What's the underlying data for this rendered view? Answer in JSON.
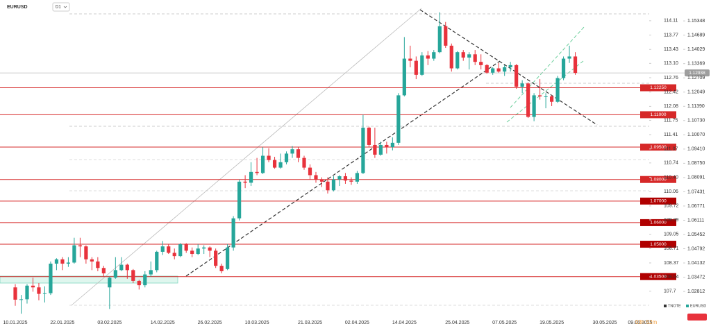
{
  "chart_data": {
    "type": "candlestick",
    "title": "EURUSD",
    "timeframe": "D1",
    "countdown": "03h 52m",
    "categories": [
      "10.01.2025",
      null,
      null,
      null,
      null,
      null,
      null,
      null,
      "22.01.2025",
      null,
      null,
      null,
      null,
      null,
      null,
      null,
      "03.02.2025",
      null,
      null,
      null,
      null,
      null,
      null,
      null,
      null,
      "14.02.2025",
      null,
      null,
      null,
      null,
      null,
      null,
      null,
      "26.02.2025",
      null,
      null,
      null,
      null,
      null,
      null,
      null,
      "10.03.2025",
      null,
      null,
      null,
      null,
      null,
      null,
      null,
      null,
      "21.03.2025",
      null,
      null,
      null,
      null,
      null,
      null,
      null,
      "02.04.2025",
      null,
      null,
      null,
      null,
      null,
      null,
      null,
      "14.04.2025",
      null,
      null,
      null,
      null,
      null,
      null,
      null,
      null,
      "25.04.2025",
      null,
      null,
      null,
      null,
      null,
      null,
      null,
      "07.05.2025",
      null,
      null,
      null,
      null,
      null,
      null,
      null,
      "19.05.2025",
      null,
      null,
      null,
      null,
      null,
      null,
      null,
      null,
      "30.05.2025",
      null,
      null,
      null,
      null,
      null,
      "09.06.2025"
    ],
    "series": [
      {
        "name": "EURUSD",
        "up_color": "#26a69a",
        "down_color": "#e8323c",
        "values": [
          [
            1.03,
            1.0315,
            1.0215,
            1.0243
          ],
          [
            1.0243,
            1.0265,
            1.0178,
            1.0245
          ],
          [
            1.0245,
            1.0315,
            1.0225,
            1.0308
          ],
          [
            1.0308,
            1.0345,
            1.028,
            1.03
          ],
          [
            1.03,
            1.032,
            1.024,
            1.027
          ],
          [
            1.027,
            1.0305,
            1.023,
            1.0273
          ],
          [
            1.0273,
            1.042,
            1.0265,
            1.041
          ],
          [
            1.041,
            1.0435,
            1.038,
            1.043
          ],
          [
            1.043,
            1.044,
            1.038,
            1.041
          ],
          [
            1.041,
            1.044,
            1.0395,
            1.0415
          ],
          [
            1.0415,
            1.053,
            1.041,
            1.0495
          ],
          [
            1.0495,
            1.053,
            1.044,
            1.049
          ],
          [
            1.049,
            1.0495,
            1.041,
            1.043
          ],
          [
            1.043,
            1.044,
            1.038,
            1.042
          ],
          [
            1.042,
            1.044,
            1.0375,
            1.039
          ],
          [
            1.039,
            1.04,
            1.035,
            1.0365
          ],
          [
            1.03,
            1.035,
            1.02,
            1.0345
          ],
          [
            1.0345,
            1.044,
            1.034,
            1.038
          ],
          [
            1.038,
            1.044,
            1.0375,
            1.0405
          ],
          [
            1.0405,
            1.041,
            1.034,
            1.038
          ],
          [
            1.038,
            1.0385,
            1.032,
            1.033
          ],
          [
            1.033,
            1.0335,
            1.029,
            1.031
          ],
          [
            1.031,
            1.0375,
            1.03,
            1.036
          ],
          [
            1.036,
            1.042,
            1.035,
            1.038
          ],
          [
            1.038,
            1.047,
            1.037,
            1.0465
          ],
          [
            1.0465,
            1.0515,
            1.045,
            1.049
          ],
          [
            1.049,
            1.05,
            1.0455,
            1.046
          ],
          [
            1.046,
            1.048,
            1.043,
            1.0445
          ],
          [
            1.0445,
            1.0505,
            1.044,
            1.05
          ],
          [
            1.05,
            1.0505,
            1.046,
            1.047
          ],
          [
            1.047,
            1.0485,
            1.044,
            1.0455
          ],
          [
            1.0455,
            1.05,
            1.045,
            1.048
          ],
          [
            1.048,
            1.0495,
            1.0455,
            1.0485
          ],
          [
            1.0485,
            1.049,
            1.044,
            1.047
          ],
          [
            1.047,
            1.048,
            1.039,
            1.04
          ],
          [
            1.04,
            1.041,
            1.0365,
            1.0375
          ],
          [
            1.0385,
            1.05,
            1.038,
            1.0485
          ],
          [
            1.0485,
            1.063,
            1.047,
            1.062
          ],
          [
            1.062,
            1.08,
            1.061,
            1.079
          ],
          [
            1.079,
            1.082,
            1.076,
            1.0785
          ],
          [
            1.0785,
            1.088,
            1.077,
            1.0835
          ],
          [
            1.0835,
            1.09,
            1.082,
            1.083
          ],
          [
            1.083,
            1.095,
            1.0825,
            1.091
          ],
          [
            1.091,
            1.0945,
            1.088,
            1.089
          ],
          [
            1.089,
            1.0905,
            1.085,
            1.0855
          ],
          [
            1.0855,
            1.092,
            1.085,
            1.088
          ],
          [
            1.088,
            1.093,
            1.087,
            1.092
          ],
          [
            1.092,
            1.0955,
            1.09,
            1.094
          ],
          [
            1.094,
            1.095,
            1.088,
            1.09
          ],
          [
            1.09,
            1.091,
            1.0845,
            1.0855
          ],
          [
            1.0855,
            1.087,
            1.08,
            1.082
          ],
          [
            1.082,
            1.0835,
            1.0785,
            1.08
          ],
          [
            1.08,
            1.081,
            1.0765,
            1.079
          ],
          [
            1.079,
            1.081,
            1.0735,
            1.075
          ],
          [
            1.075,
            1.0815,
            1.0745,
            1.08
          ],
          [
            1.08,
            1.082,
            1.077,
            1.0815
          ],
          [
            1.0815,
            1.083,
            1.078,
            1.0795
          ],
          [
            1.0795,
            1.081,
            1.0775,
            1.079
          ],
          [
            1.079,
            1.084,
            1.078,
            1.083
          ],
          [
            1.083,
            1.11,
            1.0825,
            1.104
          ],
          [
            1.104,
            1.1045,
            1.095,
            1.096
          ],
          [
            1.096,
            1.104,
            1.09,
            1.0915
          ],
          [
            1.0915,
            1.0975,
            1.091,
            1.096
          ],
          [
            1.096,
            1.0975,
            1.092,
            1.095
          ],
          [
            1.095,
            1.0995,
            1.0935,
            1.097
          ],
          [
            1.097,
            1.12,
            1.096,
            1.119
          ],
          [
            1.119,
            1.146,
            1.1185,
            1.136
          ],
          [
            1.136,
            1.142,
            1.132,
            1.135
          ],
          [
            1.135,
            1.137,
            1.1265,
            1.1285
          ],
          [
            1.1285,
            1.139,
            1.128,
            1.1375
          ],
          [
            1.1375,
            1.1395,
            1.133,
            1.136
          ],
          [
            1.136,
            1.14,
            1.135,
            1.139
          ],
          [
            1.139,
            1.1575,
            1.1385,
            1.151
          ],
          [
            1.151,
            1.153,
            1.141,
            1.142
          ],
          [
            1.142,
            1.143,
            1.13,
            1.1315
          ],
          [
            1.1315,
            1.1395,
            1.131,
            1.139
          ],
          [
            1.139,
            1.14,
            1.135,
            1.1365
          ],
          [
            1.1365,
            1.139,
            1.131,
            1.138
          ],
          [
            1.138,
            1.14,
            1.133,
            1.1345
          ],
          [
            1.1345,
            1.138,
            1.131,
            1.133
          ],
          [
            1.133,
            1.1335,
            1.129,
            1.1295
          ],
          [
            1.1295,
            1.132,
            1.1285,
            1.1315
          ],
          [
            1.1315,
            1.134,
            1.1295,
            1.13
          ],
          [
            1.13,
            1.133,
            1.128,
            1.132
          ],
          [
            1.132,
            1.1345,
            1.13,
            1.133
          ],
          [
            1.133,
            1.1335,
            1.122,
            1.123
          ],
          [
            1.123,
            1.126,
            1.12,
            1.1245
          ],
          [
            1.1245,
            1.125,
            1.1085,
            1.109
          ],
          [
            1.109,
            1.12,
            1.107,
            1.119
          ],
          [
            1.119,
            1.1265,
            1.117,
            1.1185
          ],
          [
            1.1185,
            1.12,
            1.113,
            1.1185
          ],
          [
            1.1185,
            1.119,
            1.114,
            1.116
          ],
          [
            1.116,
            1.128,
            1.1155,
            1.127
          ],
          [
            1.127,
            1.137,
            1.126,
            1.136
          ],
          [
            1.136,
            1.142,
            1.134,
            1.137
          ],
          [
            1.137,
            1.139,
            1.1285,
            1.12938
          ],
          null,
          null,
          null,
          null,
          null,
          null,
          null,
          null,
          null,
          null,
          null
        ]
      }
    ],
    "ylim": [
      1.0169,
      1.1606
    ],
    "yticks": [
      1.15348,
      1.14689,
      1.14029,
      1.13369,
      1.12709,
      1.12049,
      {
        "value": 1.1139,
        "label": "1.11390"
      },
      {
        "value": 1.1073,
        "label": "1.10730"
      },
      {
        "value": 1.1007,
        "label": "1.10070"
      },
      {
        "value": 1.0941,
        "label": "1.09410"
      },
      {
        "value": 1.0875,
        "label": "1.08750"
      },
      1.08091,
      1.07431,
      1.06771,
      1.06111,
      1.05452,
      1.04792,
      1.04132,
      1.03472,
      1.02812
    ],
    "y2lim": [
      107.12,
      114.47
    ],
    "y2ticks": [
      114.11,
      113.77,
      113.43,
      {
        "value": 113.1,
        "label": "113.10"
      },
      112.76,
      112.42,
      112.08,
      111.75,
      111.41,
      111.07,
      110.74,
      {
        "value": 110.4,
        "label": "110.40"
      },
      110.06,
      109.72,
      109.39,
      109.05,
      108.71,
      108.37,
      108.04,
      107.7
    ],
    "levels": [
      {
        "value": 1.1225,
        "label": "1.12250"
      },
      {
        "value": 1.11,
        "label": "1.11000"
      },
      {
        "value": 1.095,
        "label": "1.09500"
      },
      {
        "value": 1.08,
        "label": "1.08000"
      },
      {
        "value": 1.07,
        "label": "1.07000"
      },
      {
        "value": 1.06,
        "label": "1.06000"
      },
      {
        "value": 1.05,
        "label": "1.05000"
      },
      {
        "value": 1.035,
        "label": "1.03500"
      }
    ],
    "level_color": "#d62828",
    "last_price": 1.12938,
    "legend": [
      {
        "name": "TNOTE",
        "color": "#333333"
      },
      {
        "name": "EURUSD",
        "color": "#26a69a"
      }
    ]
  }
}
